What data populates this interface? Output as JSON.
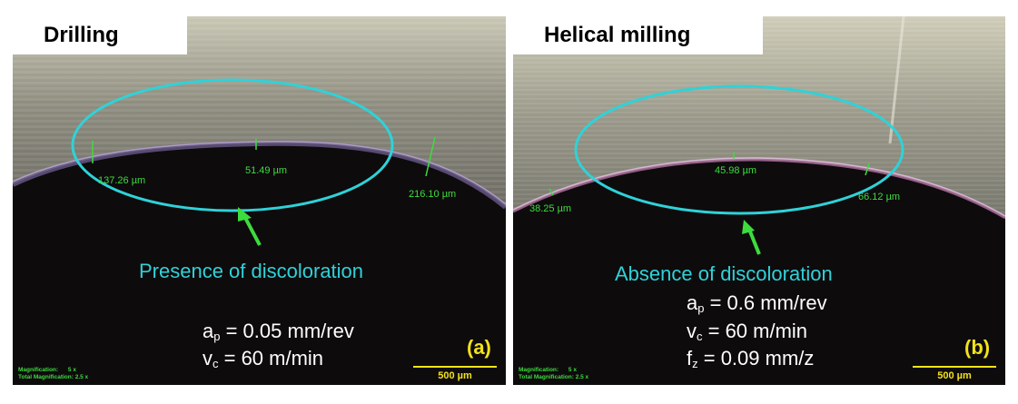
{
  "panels": [
    {
      "title": "Drilling",
      "measurements": [
        "137.26 µm",
        "51.49 µm",
        "216.10 µm"
      ],
      "annotation": "Presence of discoloration",
      "params": {
        "ap_symbol": "a",
        "ap_sub": "p",
        "ap_value": " = 0.05 mm/rev",
        "vc_symbol": "v",
        "vc_sub": "c",
        "vc_value": " = 60 m/min"
      },
      "label": "(a)",
      "magnification_label": "Magnification:",
      "magnification_value": "5 x",
      "total_magnification_label": "Total Magnification:",
      "total_magnification_value": "2.5 x",
      "scale_bar": "500 µm"
    },
    {
      "title": "Helical milling",
      "measurements": [
        "38.25 µm",
        "45.98 µm",
        "66.12 µm"
      ],
      "annotation": "Absence of discoloration",
      "params": {
        "ap_symbol": "a",
        "ap_sub": "p",
        "ap_value": " = 0.6 mm/rev",
        "vc_symbol": "v",
        "vc_sub": "c",
        "vc_value": " = 60 m/min",
        "fz_symbol": "f",
        "fz_sub": "z",
        "fz_value": " = 0.09 mm/z"
      },
      "label": "(b)",
      "magnification_label": "Magnification:",
      "magnification_value": "5 x",
      "total_magnification_label": "Total Magnification:",
      "total_magnification_value": "2.5 x",
      "scale_bar": "500 µm"
    }
  ],
  "colors": {
    "ellipse": "#2fd2d8",
    "arrow": "#3ddc3d",
    "measurement": "#3ddc3d",
    "label": "#f2e21a",
    "hole": "#0e0b0d"
  }
}
